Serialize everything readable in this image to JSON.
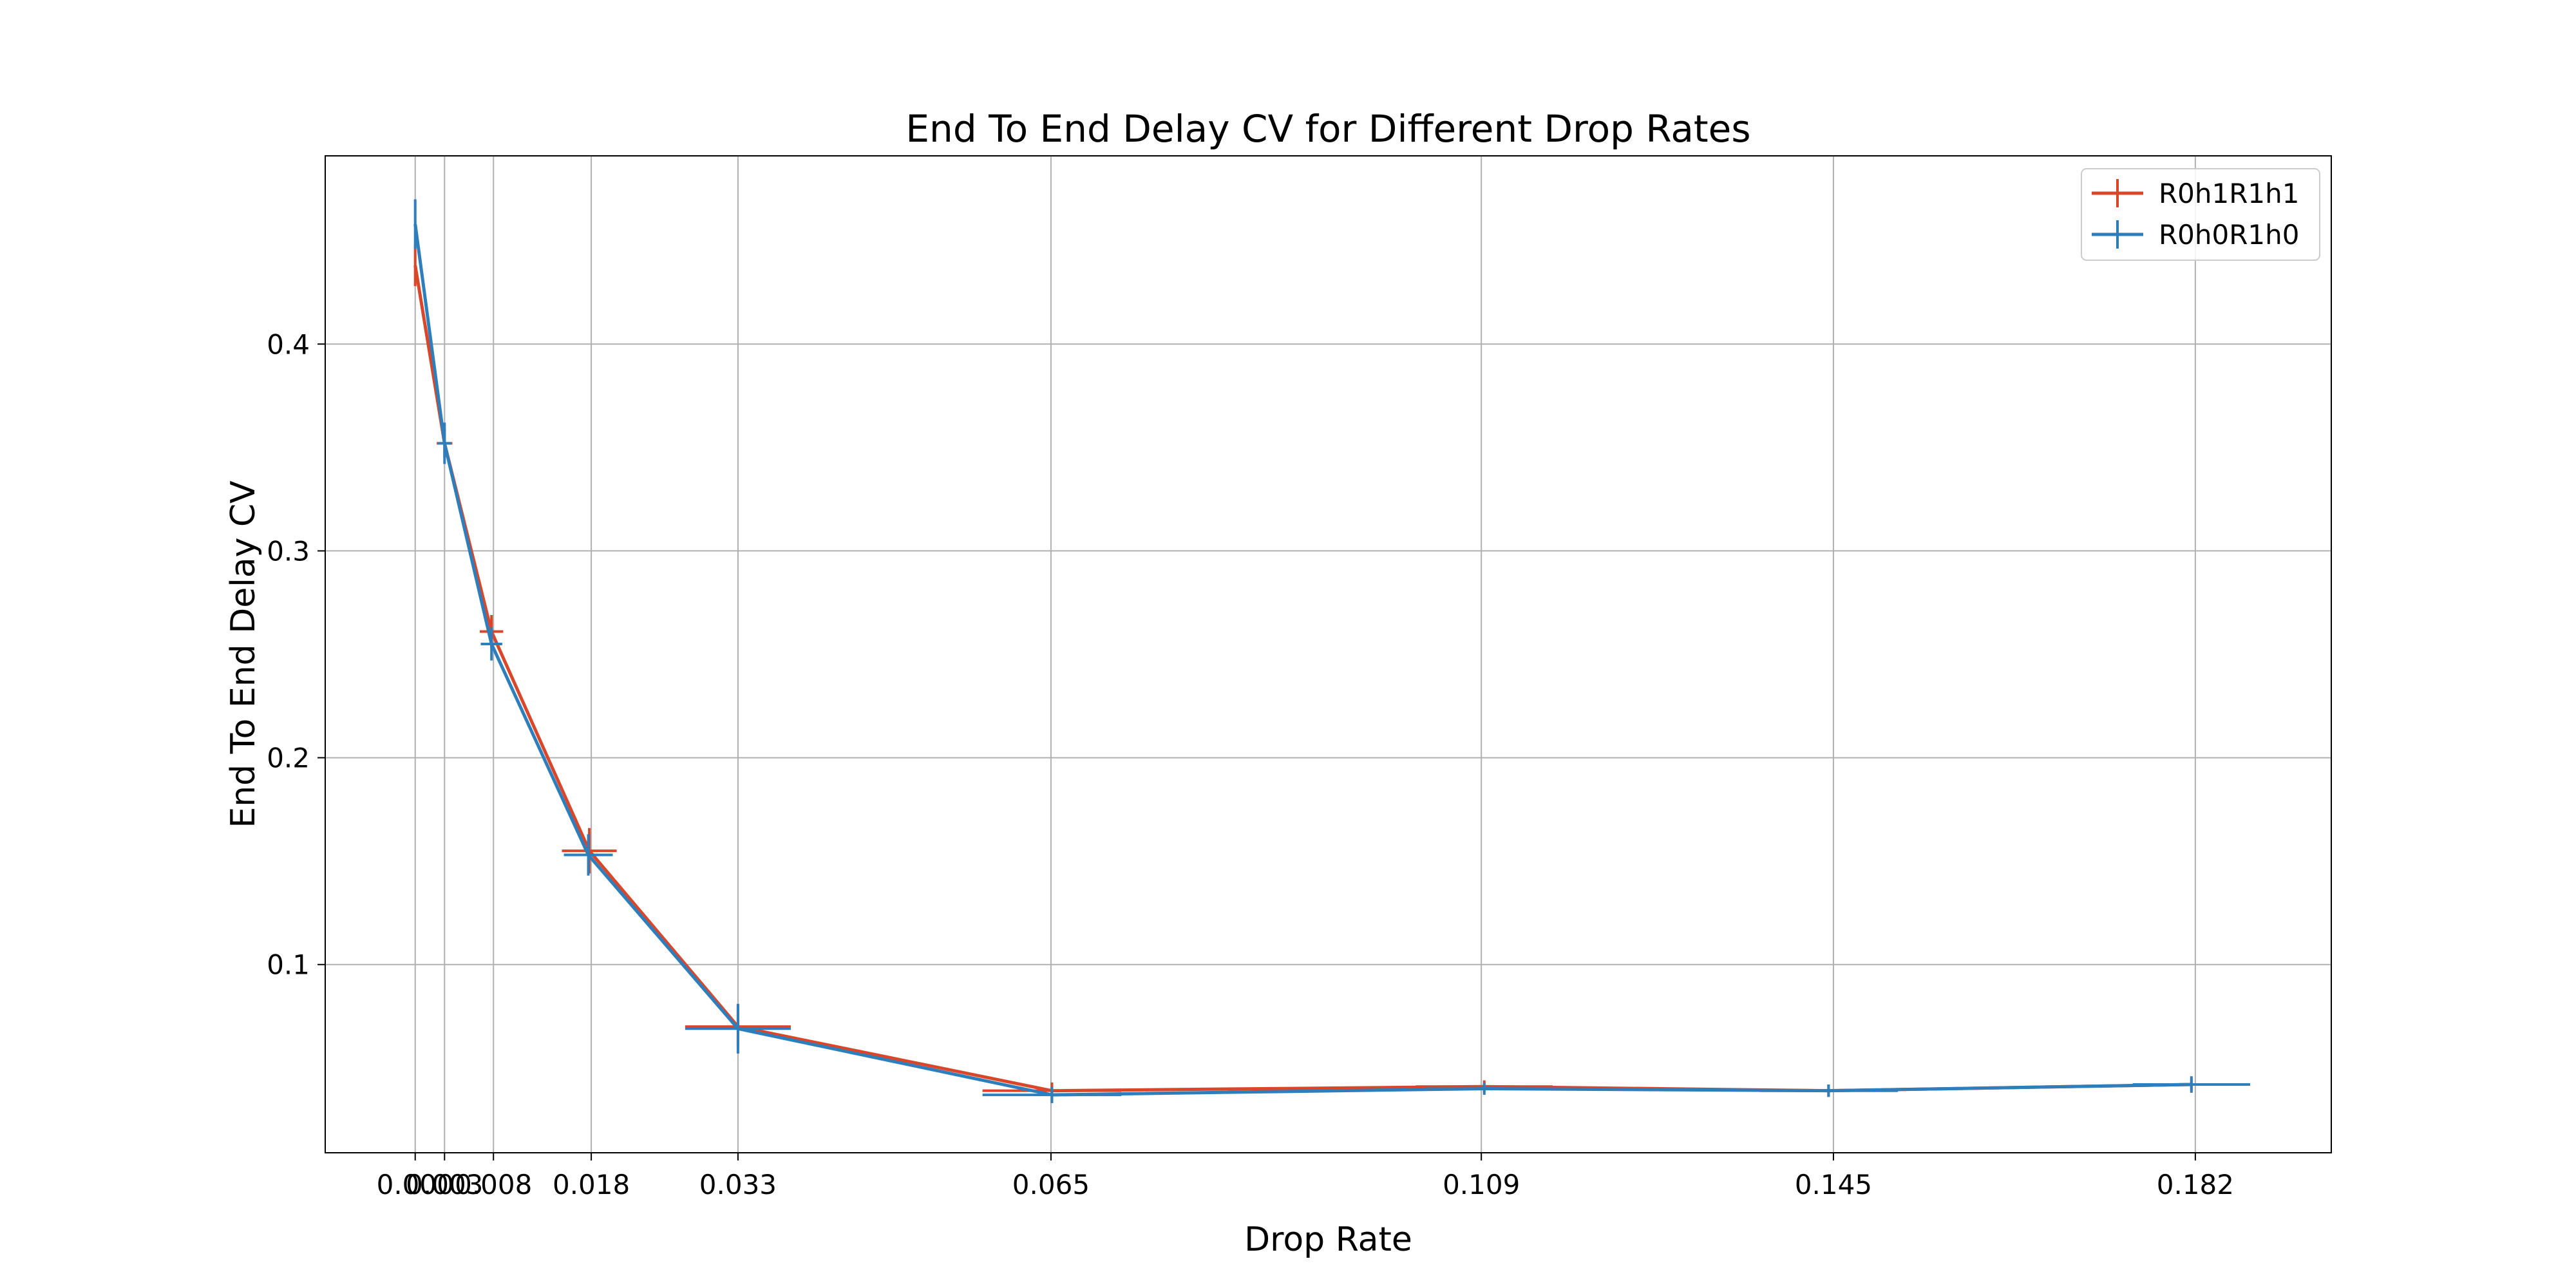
{
  "chart_data": {
    "type": "line",
    "title": "End To End Delay CV for Different Drop Rates",
    "xlabel": "Drop Rate",
    "ylabel": "End To End Delay CV",
    "xlim": [
      -0.0092,
      0.1959
    ],
    "ylim": [
      0.009,
      0.491
    ],
    "x_ticks": [
      0.0,
      0.003,
      0.008,
      0.018,
      0.033,
      0.065,
      0.109,
      0.145,
      0.182
    ],
    "x_tick_labels": [
      "0.000",
      "0.003",
      "0.008",
      "0.018",
      "0.033",
      "0.065",
      "0.109",
      "0.145",
      "0.182"
    ],
    "y_ticks": [
      0.1,
      0.2,
      0.3,
      0.4
    ],
    "y_tick_labels": [
      "0.1",
      "0.2",
      "0.3",
      "0.4"
    ],
    "grid": true,
    "legend_position": "top-right",
    "series": [
      {
        "name": "R0h1R1h1",
        "color": "#d9472b",
        "x": [
          0.0,
          0.003,
          0.0078,
          0.0178,
          0.033,
          0.0651,
          0.1093,
          0.1445,
          0.1816
        ],
        "y": [
          0.438,
          0.352,
          0.261,
          0.155,
          0.07,
          0.039,
          0.041,
          0.039,
          0.042
        ],
        "xerr": [
          0.0001,
          0.0008,
          0.0012,
          0.0028,
          0.0054,
          0.0071,
          0.007,
          0.007,
          0.006
        ],
        "yerr": [
          0.01,
          0.007,
          0.008,
          0.011,
          0.01,
          0.004,
          0.003,
          0.003,
          0.003
        ]
      },
      {
        "name": "R0h0R1h0",
        "color": "#2e7ebc",
        "x": [
          0.0,
          0.003,
          0.0078,
          0.0177,
          0.033,
          0.0651,
          0.1093,
          0.1445,
          0.1816
        ],
        "y": [
          0.458,
          0.352,
          0.255,
          0.153,
          0.069,
          0.037,
          0.04,
          0.039,
          0.042
        ],
        "xerr": [
          0.0001,
          0.0007,
          0.0011,
          0.0025,
          0.0054,
          0.0071,
          0.006,
          0.0071,
          0.006
        ],
        "yerr": [
          0.012,
          0.01,
          0.008,
          0.01,
          0.012,
          0.004,
          0.003,
          0.003,
          0.004
        ]
      }
    ]
  }
}
